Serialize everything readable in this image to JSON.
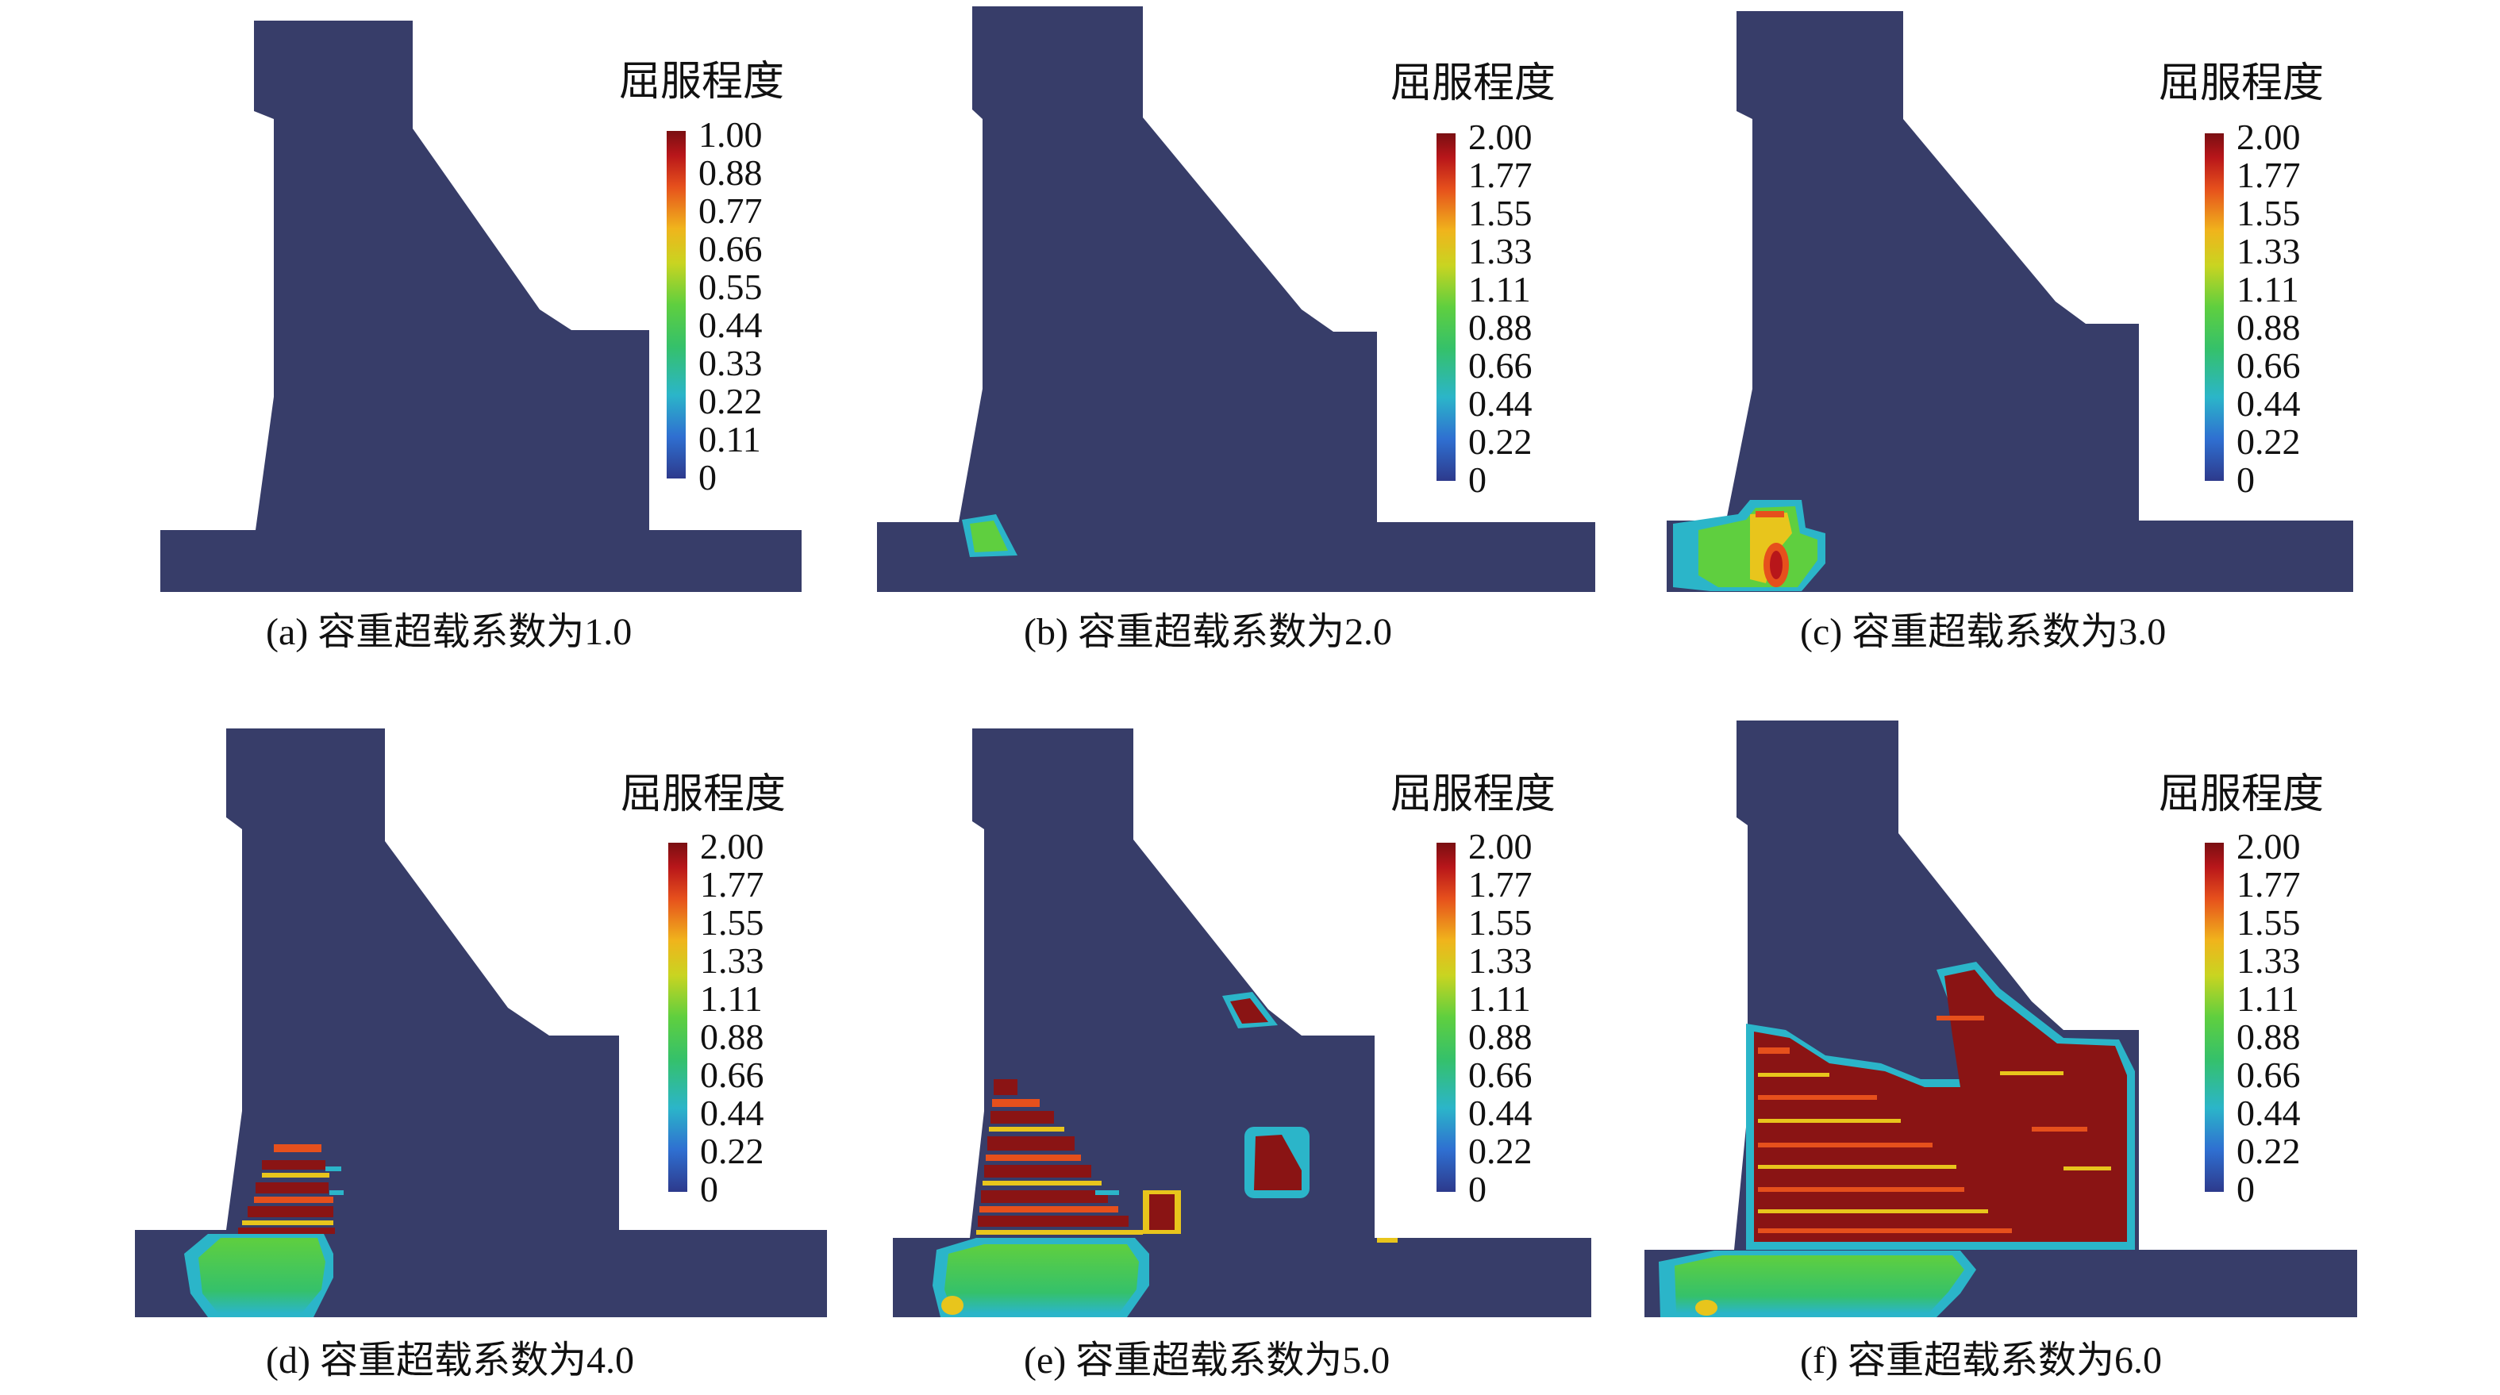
{
  "colors": {
    "background": "#3a3f6b",
    "scale": [
      "#2d3a8c",
      "#2f6fd1",
      "#2bb5c9",
      "#35c16a",
      "#5fcf3f",
      "#c9d421",
      "#f0b41c",
      "#e6501c",
      "#b8161a",
      "#7a0f12"
    ],
    "yield_green": "#5fcf3f",
    "yield_red": "#8a1414",
    "yield_cyan": "#2bb5c9",
    "yield_yellow": "#e8c51c",
    "yield_orange": "#e6501c"
  },
  "panels": [
    {
      "legend_title": "屈服程度",
      "ticks": [
        "1.00",
        "0.88",
        "0.77",
        "0.66",
        "0.55",
        "0.44",
        "0.33",
        "0.22",
        "0.11",
        "0"
      ],
      "caption": "(a) 容重超载系数为1.0"
    },
    {
      "legend_title": "屈服程度",
      "ticks": [
        "2.00",
        "1.77",
        "1.55",
        "1.33",
        "1.11",
        "0.88",
        "0.66",
        "0.44",
        "0.22",
        "0"
      ],
      "caption": "(b) 容重超载系数为2.0"
    },
    {
      "legend_title": "屈服程度",
      "ticks": [
        "2.00",
        "1.77",
        "1.55",
        "1.33",
        "1.11",
        "0.88",
        "0.66",
        "0.44",
        "0.22",
        "0"
      ],
      "caption": "(c) 容重超载系数为3.0"
    },
    {
      "legend_title": "屈服程度",
      "ticks": [
        "2.00",
        "1.77",
        "1.55",
        "1.33",
        "1.11",
        "0.88",
        "0.66",
        "0.44",
        "0.22",
        "0"
      ],
      "caption": "(d) 容重超载系数为4.0"
    },
    {
      "legend_title": "屈服程度",
      "ticks": [
        "2.00",
        "1.77",
        "1.55",
        "1.33",
        "1.11",
        "0.88",
        "0.66",
        "0.44",
        "0.22",
        "0"
      ],
      "caption": "(e) 容重超载系数为5.0"
    },
    {
      "legend_title": "屈服程度",
      "ticks": [
        "2.00",
        "1.77",
        "1.55",
        "1.33",
        "1.11",
        "0.88",
        "0.66",
        "0.44",
        "0.22",
        "0"
      ],
      "caption": "(f) 容重超载系数为6.0"
    }
  ]
}
